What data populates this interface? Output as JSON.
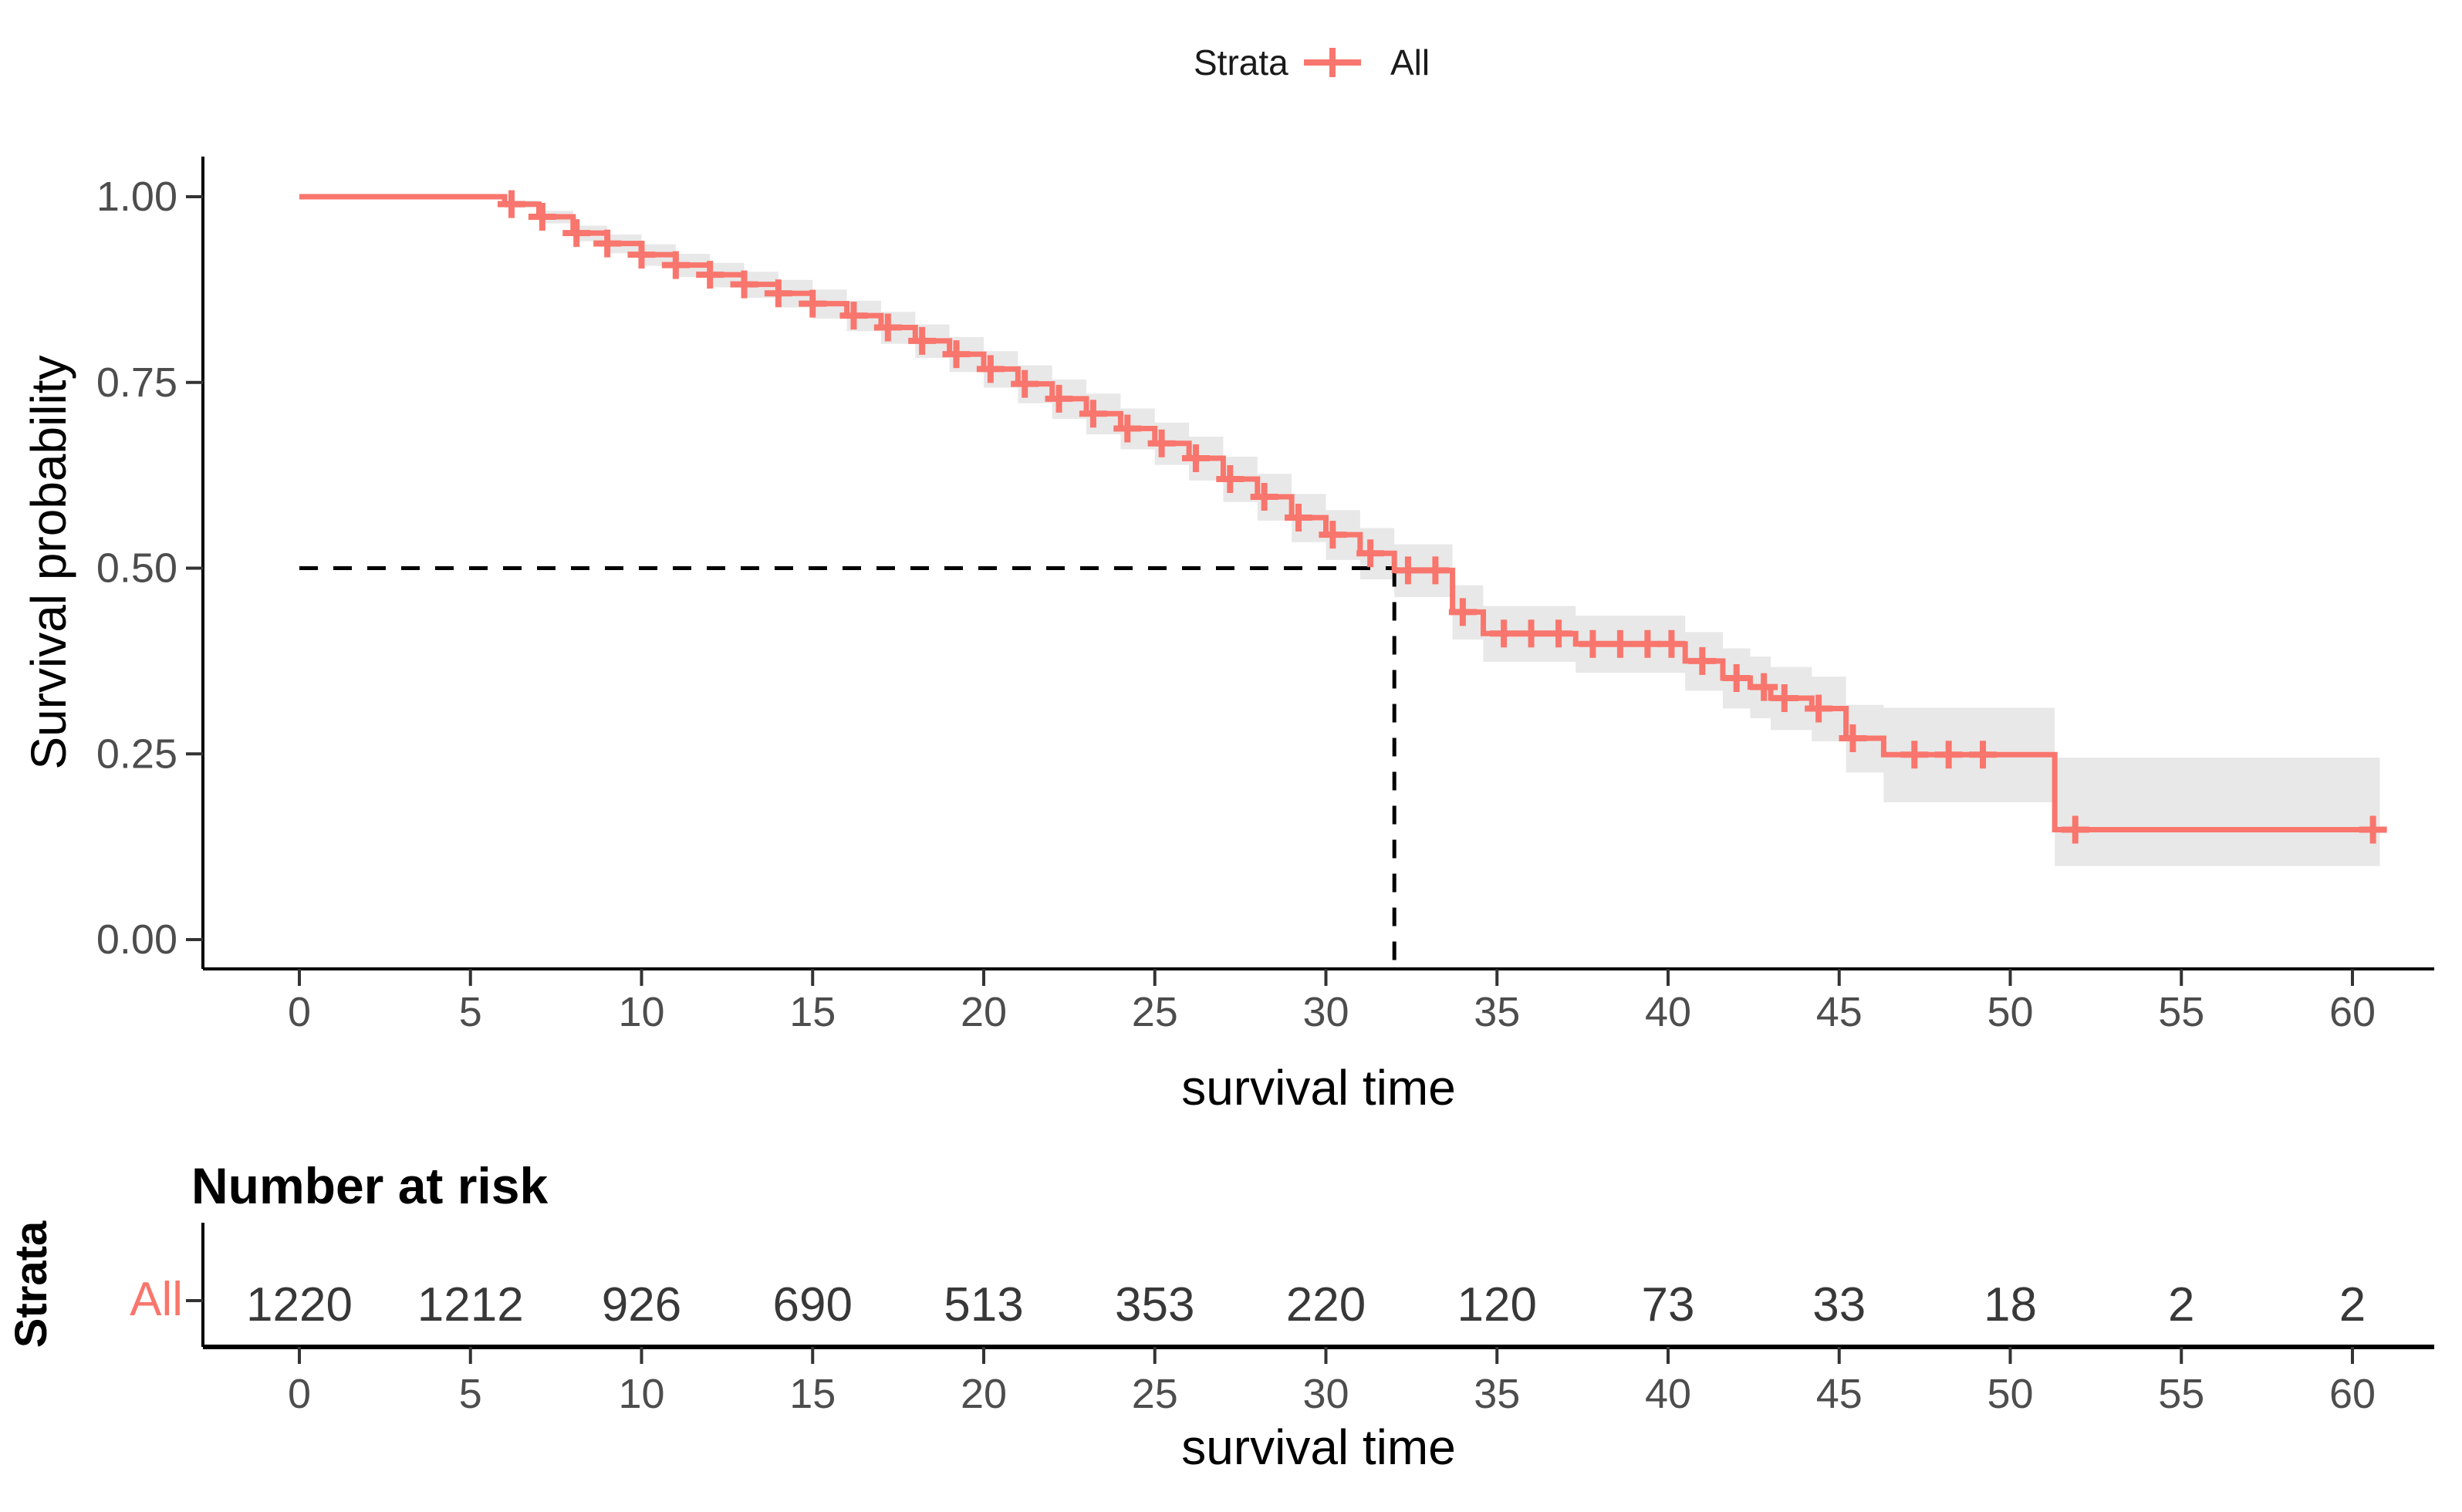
{
  "page": {
    "background": "#ffffff"
  },
  "legend": {
    "title": "Strata",
    "entry": "All"
  },
  "chart_data": {
    "type": "line",
    "subtype": "kaplan-meier-step",
    "title": "",
    "xlabel": "survival time",
    "ylabel": "Survival probability",
    "xlim": [
      0,
      62
    ],
    "ylim": [
      0,
      1.0
    ],
    "grid": false,
    "legend_position": "top",
    "x_ticks": [
      0,
      5,
      10,
      15,
      20,
      25,
      30,
      35,
      40,
      45,
      50,
      55,
      60
    ],
    "y_ticks": [
      {
        "value": 1.0,
        "label": "1.00"
      },
      {
        "value": 0.75,
        "label": "0.75"
      },
      {
        "value": 0.5,
        "label": "0.50"
      },
      {
        "value": 0.25,
        "label": "0.25"
      },
      {
        "value": 0.0,
        "label": "0.00"
      }
    ],
    "median": {
      "time": 32,
      "survival": 0.5
    },
    "end_time": 60.8,
    "colors": {
      "curve": "#F8766D",
      "ci_band": "#e8e8e8",
      "axis": "#000000",
      "tick": "#333333",
      "tick_label": "#4d4d4d",
      "dashed": "#000000"
    },
    "series": [
      {
        "name": "All",
        "color": "#F8766D",
        "steps": [
          [
            0,
            1.0
          ],
          [
            6,
            0.99
          ],
          [
            7,
            0.973
          ],
          [
            8,
            0.951
          ],
          [
            9,
            0.937
          ],
          [
            10,
            0.922
          ],
          [
            11,
            0.908
          ],
          [
            12,
            0.895
          ],
          [
            13,
            0.882
          ],
          [
            14,
            0.87
          ],
          [
            15,
            0.856
          ],
          [
            16,
            0.84
          ],
          [
            17,
            0.824
          ],
          [
            18,
            0.806
          ],
          [
            19,
            0.788
          ],
          [
            20,
            0.768
          ],
          [
            21,
            0.748
          ],
          [
            22,
            0.728
          ],
          [
            23,
            0.708
          ],
          [
            24,
            0.688
          ],
          [
            25,
            0.668
          ],
          [
            26,
            0.648
          ],
          [
            27,
            0.62
          ],
          [
            28,
            0.596
          ],
          [
            29,
            0.568
          ],
          [
            30,
            0.545
          ],
          [
            31,
            0.52
          ],
          [
            32,
            0.497
          ],
          [
            33.7,
            0.441
          ],
          [
            34.6,
            0.412
          ],
          [
            37.3,
            0.398
          ],
          [
            40.5,
            0.375
          ],
          [
            41.6,
            0.352
          ],
          [
            42.4,
            0.34
          ],
          [
            43.0,
            0.325
          ],
          [
            44.2,
            0.311
          ],
          [
            45.2,
            0.271
          ],
          [
            46.3,
            0.249
          ],
          [
            51.3,
            0.148
          ]
        ],
        "censors": [
          [
            6.2,
            0.99
          ],
          [
            7.1,
            0.973
          ],
          [
            8.1,
            0.951
          ],
          [
            9.0,
            0.937
          ],
          [
            10.0,
            0.922
          ],
          [
            11.0,
            0.908
          ],
          [
            12.0,
            0.895
          ],
          [
            13.0,
            0.882
          ],
          [
            14.0,
            0.87
          ],
          [
            15.0,
            0.856
          ],
          [
            16.2,
            0.84
          ],
          [
            17.2,
            0.824
          ],
          [
            18.2,
            0.806
          ],
          [
            19.2,
            0.788
          ],
          [
            20.2,
            0.768
          ],
          [
            21.2,
            0.748
          ],
          [
            22.2,
            0.728
          ],
          [
            23.2,
            0.708
          ],
          [
            24.2,
            0.688
          ],
          [
            25.2,
            0.668
          ],
          [
            26.2,
            0.648
          ],
          [
            27.2,
            0.62
          ],
          [
            28.2,
            0.596
          ],
          [
            29.2,
            0.568
          ],
          [
            30.2,
            0.545
          ],
          [
            31.3,
            0.52
          ],
          [
            32.4,
            0.497
          ],
          [
            33.2,
            0.497
          ],
          [
            34.0,
            0.441
          ],
          [
            35.2,
            0.412
          ],
          [
            36.0,
            0.412
          ],
          [
            36.8,
            0.412
          ],
          [
            37.8,
            0.398
          ],
          [
            38.6,
            0.398
          ],
          [
            39.4,
            0.398
          ],
          [
            40.1,
            0.398
          ],
          [
            41.0,
            0.375
          ],
          [
            42.0,
            0.352
          ],
          [
            42.8,
            0.34
          ],
          [
            43.4,
            0.325
          ],
          [
            44.4,
            0.311
          ],
          [
            45.4,
            0.271
          ],
          [
            47.2,
            0.249
          ],
          [
            48.2,
            0.249
          ],
          [
            49.2,
            0.249
          ],
          [
            51.9,
            0.148
          ],
          [
            60.6,
            0.148
          ]
        ],
        "ci": [
          [
            0,
            1.0,
            1.0
          ],
          [
            6,
            0.985,
            0.995
          ],
          [
            7,
            0.964,
            0.981
          ],
          [
            8,
            0.94,
            0.961
          ],
          [
            9,
            0.924,
            0.949
          ],
          [
            10,
            0.907,
            0.936
          ],
          [
            11,
            0.892,
            0.923
          ],
          [
            12,
            0.878,
            0.911
          ],
          [
            13,
            0.864,
            0.899
          ],
          [
            14,
            0.851,
            0.888
          ],
          [
            15,
            0.836,
            0.875
          ],
          [
            16,
            0.819,
            0.86
          ],
          [
            17,
            0.802,
            0.845
          ],
          [
            18,
            0.783,
            0.828
          ],
          [
            19,
            0.764,
            0.811
          ],
          [
            20,
            0.743,
            0.792
          ],
          [
            21,
            0.722,
            0.773
          ],
          [
            22,
            0.701,
            0.754
          ],
          [
            23,
            0.68,
            0.735
          ],
          [
            24,
            0.66,
            0.715
          ],
          [
            25,
            0.639,
            0.696
          ],
          [
            26,
            0.618,
            0.677
          ],
          [
            27,
            0.589,
            0.65
          ],
          [
            28,
            0.564,
            0.627
          ],
          [
            29,
            0.535,
            0.6
          ],
          [
            30,
            0.511,
            0.578
          ],
          [
            31,
            0.485,
            0.554
          ],
          [
            32,
            0.461,
            0.532
          ],
          [
            33.7,
            0.404,
            0.477
          ],
          [
            34.6,
            0.374,
            0.449
          ],
          [
            37.3,
            0.359,
            0.436
          ],
          [
            40.5,
            0.335,
            0.414
          ],
          [
            41.6,
            0.311,
            0.392
          ],
          [
            42.4,
            0.298,
            0.381
          ],
          [
            43.0,
            0.282,
            0.367
          ],
          [
            44.2,
            0.267,
            0.354
          ],
          [
            45.2,
            0.225,
            0.316
          ],
          [
            46.3,
            0.185,
            0.312
          ],
          [
            51.3,
            0.099,
            0.245
          ]
        ]
      }
    ]
  },
  "risk_table": {
    "title": "Number at risk",
    "ylabel": "Strata",
    "xlabel": "survival time",
    "times": [
      0,
      5,
      10,
      15,
      20,
      25,
      30,
      35,
      40,
      45,
      50,
      55,
      60
    ],
    "strata": [
      {
        "label": "All",
        "color": "#F8766D",
        "values": [
          1220,
          1212,
          926,
          690,
          513,
          353,
          220,
          120,
          73,
          33,
          18,
          2,
          2
        ]
      }
    ]
  }
}
